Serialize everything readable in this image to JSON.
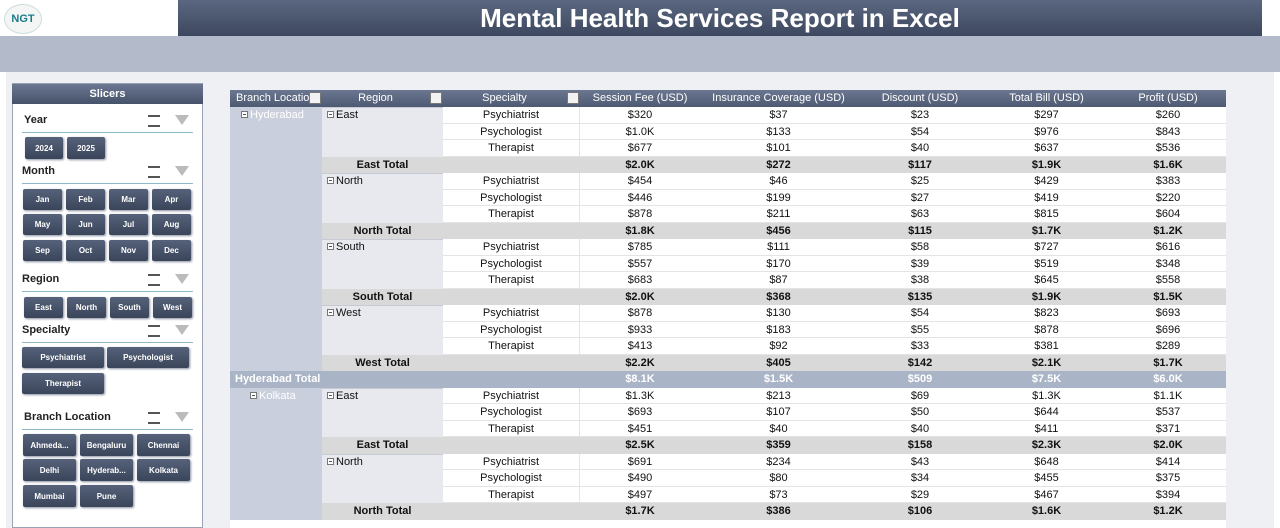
{
  "header": {
    "logo": "NGT",
    "title": "Mental Health Services Report in Excel"
  },
  "slicers": {
    "title": "Slicers",
    "groups": [
      {
        "label": "Year",
        "buttons": [
          "2024",
          "2025"
        ]
      },
      {
        "label": "Month",
        "buttons": [
          "Jan",
          "Feb",
          "Mar",
          "Apr",
          "May",
          "Jun",
          "Jul",
          "Aug",
          "Sep",
          "Oct",
          "Nov",
          "Dec"
        ]
      },
      {
        "label": "Region",
        "buttons": [
          "East",
          "North",
          "South",
          "West"
        ]
      },
      {
        "label": "Specialty",
        "buttons": [
          "Psychiatrist",
          "Psychologist",
          "Therapist"
        ]
      },
      {
        "label": "Branch Location",
        "buttons": [
          "Ahmeda...",
          "Bengaluru",
          "Chennai",
          "Delhi",
          "Hyderab...",
          "Kolkata",
          "Mumbai",
          "Pune"
        ]
      }
    ]
  },
  "table": {
    "columns": [
      "Branch Location",
      "Region",
      "Specialty",
      "Session Fee (USD)",
      "Insurance Coverage (USD)",
      "Discount (USD)",
      "Total Bill (USD)",
      "Profit (USD)"
    ],
    "rows": [
      {
        "branch": "Hyderabad",
        "region": "East",
        "specialty": "Psychiatrist",
        "values": [
          "$320",
          "$37",
          "$23",
          "$297",
          "$260"
        ]
      },
      {
        "specialty": "Psychologist",
        "values": [
          "$1.0K",
          "$133",
          "$54",
          "$976",
          "$843"
        ]
      },
      {
        "specialty": "Therapist",
        "values": [
          "$677",
          "$101",
          "$40",
          "$637",
          "$536"
        ]
      },
      {
        "total": "East Total",
        "values": [
          "$2.0K",
          "$272",
          "$117",
          "$1.9K",
          "$1.6K"
        ]
      },
      {
        "region": "North",
        "specialty": "Psychiatrist",
        "values": [
          "$454",
          "$46",
          "$25",
          "$429",
          "$383"
        ]
      },
      {
        "specialty": "Psychologist",
        "values": [
          "$446",
          "$199",
          "$27",
          "$419",
          "$220"
        ]
      },
      {
        "specialty": "Therapist",
        "values": [
          "$878",
          "$211",
          "$63",
          "$815",
          "$604"
        ]
      },
      {
        "total": "North Total",
        "values": [
          "$1.8K",
          "$456",
          "$115",
          "$1.7K",
          "$1.2K"
        ]
      },
      {
        "region": "South",
        "specialty": "Psychiatrist",
        "values": [
          "$785",
          "$111",
          "$58",
          "$727",
          "$616"
        ]
      },
      {
        "specialty": "Psychologist",
        "values": [
          "$557",
          "$170",
          "$39",
          "$519",
          "$348"
        ]
      },
      {
        "specialty": "Therapist",
        "values": [
          "$683",
          "$87",
          "$38",
          "$645",
          "$558"
        ]
      },
      {
        "total": "South Total",
        "values": [
          "$2.0K",
          "$368",
          "$135",
          "$1.9K",
          "$1.5K"
        ]
      },
      {
        "region": "West",
        "specialty": "Psychiatrist",
        "values": [
          "$878",
          "$130",
          "$54",
          "$823",
          "$693"
        ]
      },
      {
        "specialty": "Psychologist",
        "values": [
          "$933",
          "$183",
          "$55",
          "$878",
          "$696"
        ]
      },
      {
        "specialty": "Therapist",
        "values": [
          "$413",
          "$92",
          "$33",
          "$381",
          "$289"
        ]
      },
      {
        "total": "West Total",
        "values": [
          "$2.2K",
          "$405",
          "$142",
          "$2.1K",
          "$1.7K"
        ]
      },
      {
        "branch_total": "Hyderabad Total",
        "values": [
          "$8.1K",
          "$1.5K",
          "$509",
          "$7.5K",
          "$6.0K"
        ]
      },
      {
        "branch": "Kolkata",
        "region": "East",
        "specialty": "Psychiatrist",
        "values": [
          "$1.3K",
          "$213",
          "$69",
          "$1.3K",
          "$1.1K"
        ]
      },
      {
        "specialty": "Psychologist",
        "values": [
          "$693",
          "$107",
          "$50",
          "$644",
          "$537"
        ]
      },
      {
        "specialty": "Therapist",
        "values": [
          "$451",
          "$40",
          "$40",
          "$411",
          "$371"
        ]
      },
      {
        "total": "East Total",
        "values": [
          "$2.5K",
          "$359",
          "$158",
          "$2.3K",
          "$2.0K"
        ]
      },
      {
        "region": "North",
        "specialty": "Psychiatrist",
        "values": [
          "$691",
          "$234",
          "$43",
          "$648",
          "$414"
        ]
      },
      {
        "specialty": "Psychologist",
        "values": [
          "$490",
          "$80",
          "$34",
          "$455",
          "$375"
        ]
      },
      {
        "specialty": "Therapist",
        "values": [
          "$497",
          "$73",
          "$29",
          "$467",
          "$394"
        ]
      },
      {
        "total": "North Total",
        "values": [
          "$1.7K",
          "$386",
          "$106",
          "$1.6K",
          "$1.2K"
        ]
      }
    ]
  }
}
